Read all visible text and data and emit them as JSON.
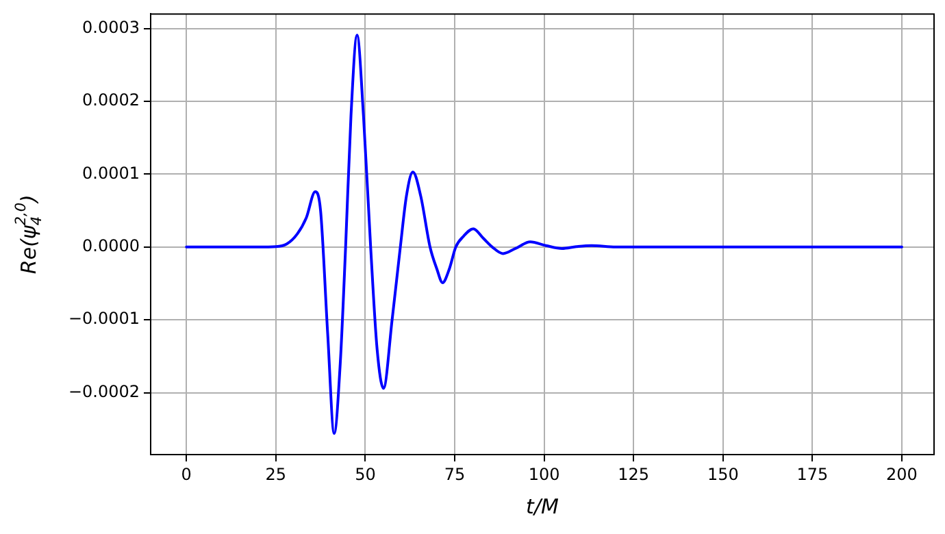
{
  "chart_data": {
    "type": "line",
    "xlabel": "t/M",
    "ylabel": "Re(ψ$^{2,0}$$_{4}$)",
    "series": [
      {
        "color": "#0000ff",
        "x": [
          0,
          10,
          20,
          25,
          28,
          31,
          33.5,
          36,
          37.5,
          39.5,
          41.3,
          43,
          44.5,
          46,
          47.7,
          49.5,
          51.5,
          53.3,
          55.1,
          57.5,
          59.8,
          61.5,
          63.3,
          65.5,
          68.1,
          70,
          71.6,
          73.5,
          75.3,
          77.5,
          80.2,
          83,
          85.5,
          88.5,
          92,
          96.1,
          100.5,
          105,
          109,
          113.3,
          120,
          130,
          150,
          175,
          200
        ],
        "values": [
          0,
          0,
          0,
          5e-07,
          4e-06,
          1.8e-05,
          4e-05,
          7.6e-05,
          5e-05,
          -0.00012,
          -0.000256,
          -0.00016,
          0,
          0.00018,
          0.000291,
          0.00018,
          0,
          -0.00014,
          -0.000194,
          -0.0001,
          0,
          7e-05,
          0.000103,
          7e-05,
          0,
          -3e-05,
          -4.9e-05,
          -3e-05,
          0,
          1.5e-05,
          2.5e-05,
          1.2e-05,
          0,
          -9e-06,
          -2e-06,
          7e-06,
          2e-06,
          -2e-06,
          5e-07,
          2e-06,
          0,
          0,
          0,
          0,
          0
        ]
      }
    ],
    "xlim": [
      -10,
      209
    ],
    "xticks": [
      0,
      25,
      50,
      75,
      100,
      125,
      150,
      175,
      200
    ],
    "ylim": [
      -0.000285,
      0.00032
    ],
    "yticks": [
      {
        "value": -0.0002,
        "label": "−0.0002"
      },
      {
        "value": -0.0001,
        "label": "−0.0001"
      },
      {
        "value": 0,
        "label": "0.0000"
      },
      {
        "value": 0.0001,
        "label": "0.0001"
      },
      {
        "value": 0.0002,
        "label": "0.0002"
      },
      {
        "value": 0.0003,
        "label": "0.0003"
      }
    ],
    "grid": true,
    "legend": false,
    "marker": "none",
    "line_style": "solid"
  }
}
